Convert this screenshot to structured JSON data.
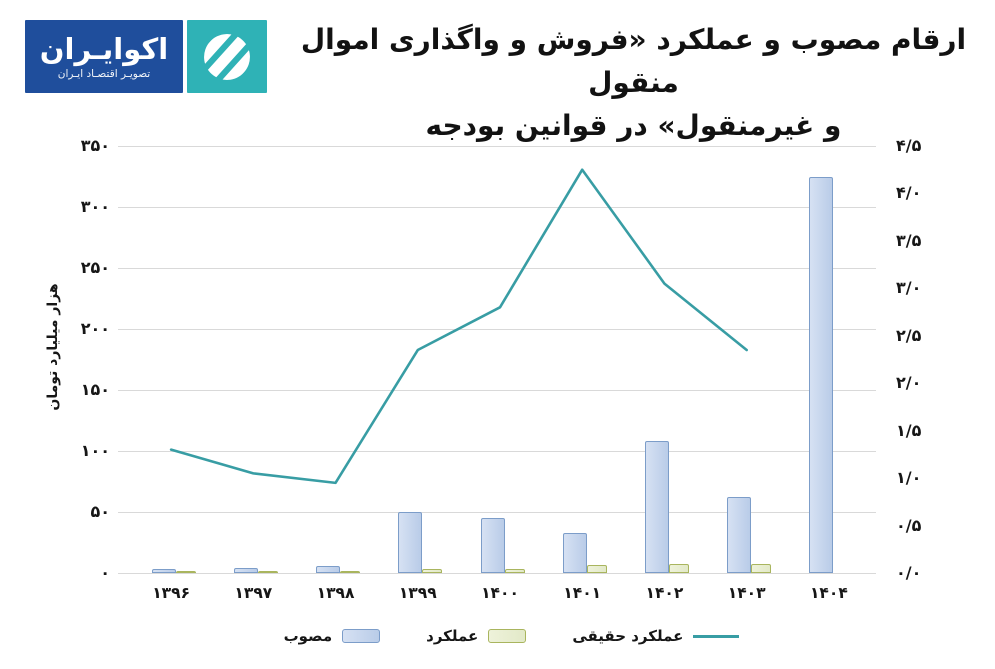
{
  "header": {
    "logo": {
      "name": "اکوایـران",
      "tagline": "تصویـر اقتصـاد ایـران",
      "brand_blue": "#1f4e9c",
      "brand_teal": "#2fb2b6"
    },
    "title_line1": "ارقام مصوب و عملکرد «فروش و واگذاری اموال منقول",
    "title_line2": "و غیرمنقول» در قوانین بودجه"
  },
  "chart_data": {
    "type": "combo-bar-line",
    "categories": [
      "۱۳۹۶",
      "۱۳۹۷",
      "۱۳۹۸",
      "۱۳۹۹",
      "۱۴۰۰",
      "۱۴۰۱",
      "۱۴۰۲",
      "۱۴۰۳",
      "۱۴۰۴"
    ],
    "categories_western": [
      1396,
      1397,
      1398,
      1399,
      1400,
      1401,
      1402,
      1403,
      1404
    ],
    "series": [
      {
        "name": "مصوب",
        "type": "bar",
        "axis": "left",
        "fill_light": "#d6e1f3",
        "fill_dark": "#b9cce8",
        "border": "#7c9dc9",
        "values": [
          3,
          4,
          6,
          50,
          45,
          33,
          108,
          62,
          325
        ]
      },
      {
        "name": "عملکرد",
        "type": "bar",
        "axis": "left",
        "fill_light": "#eef2da",
        "fill_dark": "#e2e9c8",
        "border": "#a9b55e",
        "values": [
          1,
          1.5,
          2,
          3,
          3.5,
          6.5,
          7.5,
          7.5,
          null
        ]
      },
      {
        "name": "عملکرد حقیقی",
        "type": "line",
        "axis": "right",
        "color": "#389da4",
        "values": [
          1.3,
          1.05,
          0.95,
          2.35,
          2.8,
          4.25,
          3.05,
          2.35,
          null
        ]
      }
    ],
    "left_axis": {
      "title": "هزار میلیارد تومان",
      "min": 0,
      "max": 350,
      "step": 50,
      "ticks": [
        {
          "v": 350,
          "label": "۳۵۰"
        },
        {
          "v": 300,
          "label": "۳۰۰"
        },
        {
          "v": 250,
          "label": "۲۵۰"
        },
        {
          "v": 200,
          "label": "۲۰۰"
        },
        {
          "v": 150,
          "label": "۱۵۰"
        },
        {
          "v": 100,
          "label": "۱۰۰"
        },
        {
          "v": 50,
          "label": "۵۰"
        },
        {
          "v": 0,
          "label": "۰"
        }
      ]
    },
    "right_axis": {
      "min": 0,
      "max": 4.5,
      "step": 0.5,
      "ticks": [
        {
          "v": 4.5,
          "label": "۴/۵"
        },
        {
          "v": 4.0,
          "label": "۴/۰"
        },
        {
          "v": 3.5,
          "label": "۳/۵"
        },
        {
          "v": 3.0,
          "label": "۳/۰"
        },
        {
          "v": 2.5,
          "label": "۲/۵"
        },
        {
          "v": 2.0,
          "label": "۲/۰"
        },
        {
          "v": 1.5,
          "label": "۱/۵"
        },
        {
          "v": 1.0,
          "label": "۱/۰"
        },
        {
          "v": 0.5,
          "label": "۰/۵"
        },
        {
          "v": 0.0,
          "label": "۰/۰"
        }
      ]
    },
    "grid": {
      "on": true,
      "color": "#d9d9d9"
    },
    "legend_position": "bottom",
    "legend": [
      {
        "label": "مصوب",
        "swatch": "bar-blue"
      },
      {
        "label": "عملکرد",
        "swatch": "bar-green"
      },
      {
        "label": "عملکرد حقیقی",
        "swatch": "line-teal"
      }
    ]
  }
}
